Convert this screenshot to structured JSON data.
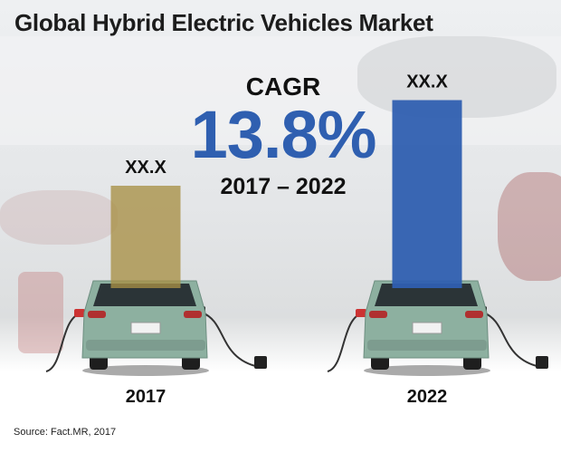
{
  "title": "Global Hybrid Electric Vehicles Market",
  "cagr": {
    "label": "CAGR",
    "value": "13.8%",
    "period": "2017 – 2022"
  },
  "source": "Source: Fact.MR, 2017",
  "colors": {
    "bar_2017": "#a88f45",
    "bar_2022": "#2f5fb0",
    "cagr_value": "#2f5fb0",
    "car_body": "#8db0a0"
  },
  "chart_data": {
    "type": "bar",
    "title": "Global Hybrid Electric Vehicles Market",
    "categories": [
      "2017",
      "2022"
    ],
    "values": [
      1,
      1.9
    ],
    "value_labels": [
      "XX.X",
      "XX.X"
    ],
    "xlabel": "",
    "ylabel": "",
    "grid": false,
    "legend": "none"
  }
}
